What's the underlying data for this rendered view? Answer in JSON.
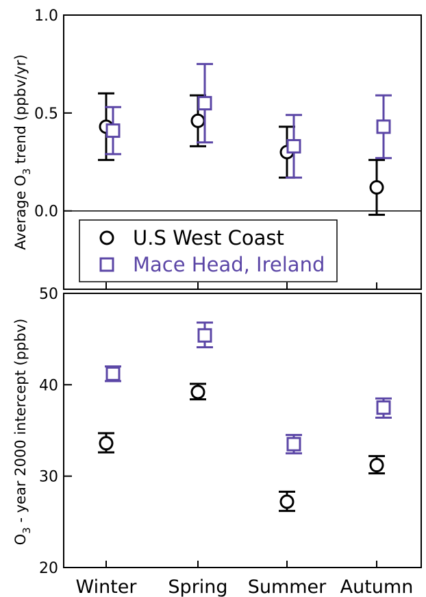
{
  "colors": {
    "west_coast": "#000000",
    "mace_head": "#5B46A6"
  },
  "chart_data": [
    {
      "type": "scatter",
      "panel": "top",
      "ylabel": "Average O3 trend (ppbv/yr)",
      "ylabel_main": "Average O",
      "ylabel_sub": "3",
      "ylabel_rest": " trend (ppbv/yr)",
      "ylim": [
        -0.4,
        1.0
      ],
      "yticks": [
        0.0,
        0.5,
        1.0
      ],
      "ytick_labels": [
        "0.0",
        "0.5",
        "1.0"
      ],
      "zero_line": true,
      "categories": [
        "Winter",
        "Spring",
        "Summer",
        "Autumn"
      ],
      "legend_position": "lower-left",
      "series": [
        {
          "name": "U.S West Coast",
          "marker": "circle",
          "color": "#000000",
          "values": [
            0.43,
            0.46,
            0.3,
            0.12
          ],
          "err_low": [
            0.26,
            0.33,
            0.17,
            -0.02
          ],
          "err_high": [
            0.6,
            0.59,
            0.43,
            0.26
          ]
        },
        {
          "name": "Mace Head, Ireland",
          "marker": "square",
          "color": "#5B46A6",
          "values": [
            0.41,
            0.55,
            0.33,
            0.43
          ],
          "err_low": [
            0.29,
            0.35,
            0.17,
            0.27
          ],
          "err_high": [
            0.53,
            0.75,
            0.49,
            0.59
          ]
        }
      ]
    },
    {
      "type": "scatter",
      "panel": "bottom",
      "ylabel": "O3 - year 2000 intercept (ppbv)",
      "ylabel_main": "O",
      "ylabel_sub": "3",
      "ylabel_rest": "  - year 2000 intercept (ppbv)",
      "ylim": [
        20,
        50
      ],
      "yticks": [
        20,
        30,
        40,
        50
      ],
      "ytick_labels": [
        "20",
        "30",
        "40",
        "50"
      ],
      "categories": [
        "Winter",
        "Spring",
        "Summer",
        "Autumn"
      ],
      "series": [
        {
          "name": "U.S West Coast",
          "marker": "circle",
          "color": "#000000",
          "values": [
            33.6,
            39.2,
            27.2,
            31.2
          ],
          "err_low": [
            32.6,
            38.4,
            26.2,
            30.3
          ],
          "err_high": [
            34.7,
            40.1,
            28.3,
            32.2
          ]
        },
        {
          "name": "Mace Head, Ireland",
          "marker": "square",
          "color": "#5B46A6",
          "values": [
            41.2,
            45.4,
            33.5,
            37.5
          ],
          "err_low": [
            40.4,
            44.1,
            32.5,
            36.4
          ],
          "err_high": [
            42.0,
            46.8,
            34.5,
            38.5
          ]
        }
      ]
    }
  ]
}
